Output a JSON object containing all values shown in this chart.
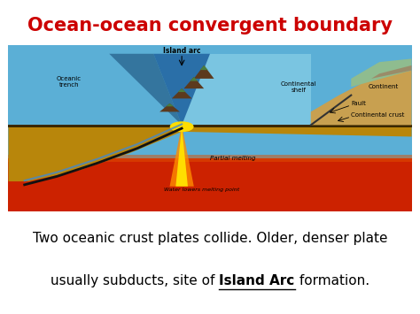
{
  "title": "Ocean-ocean convergent boundary",
  "title_color": "#cc0000",
  "title_fontsize": 15,
  "caption_line1": "Two oceanic crust plates collide. Older, denser plate",
  "caption_line2_part1": "usually subducts, site of ",
  "caption_line2_bold": "Island Arc",
  "caption_line2_part3": " formation.",
  "caption_fontsize": 11,
  "bg_color": "#ffffff",
  "diagram_bg": "#87ceeb",
  "labels": {
    "island_arc": "Island arc",
    "oceanic_trench": "Oceanic\ntrench",
    "continental_shelf": "Continental\nshelf",
    "continent": "Continent",
    "fault": "Fault",
    "continental_crust": "Continental crust",
    "partial_melting": "Partial melting",
    "water_lowers": "Water lowers melting point"
  },
  "colors": {
    "ocean_deep": "#2a6fa8",
    "ocean_light": "#5bafd6",
    "ocean_surface": "#7ec8e3",
    "mantle": "#cc2200",
    "mantle_light": "#e05000",
    "crust_brown": "#b8860b",
    "crust_tan": "#c8a050",
    "crust_gold": "#d4a843",
    "subduct_line": "#1a1a2e",
    "magma_yellow": "#ffdd00",
    "magma_orange": "#ff8c00",
    "blue_water_line": "#4488cc",
    "continent_green": "#8fbc8f",
    "continent_brown": "#a0785a"
  }
}
